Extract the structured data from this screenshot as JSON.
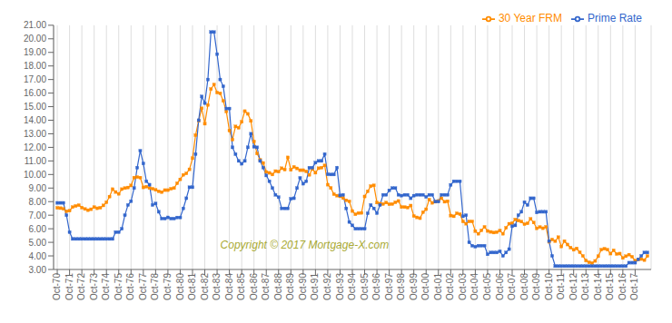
{
  "chart_data": {
    "type": "line",
    "annotation": "Copyright © 2017 Mortgage-X.com",
    "x": [
      1970,
      1970.25,
      1970.5,
      1970.75,
      1971,
      1971.25,
      1971.5,
      1971.75,
      1972,
      1972.25,
      1972.5,
      1972.75,
      1973,
      1973.25,
      1973.5,
      1973.75,
      1974,
      1974.25,
      1974.5,
      1974.75,
      1975,
      1975.25,
      1975.5,
      1975.75,
      1976,
      1976.25,
      1976.5,
      1976.75,
      1977,
      1977.25,
      1977.5,
      1977.75,
      1978,
      1978.25,
      1978.5,
      1978.75,
      1979,
      1979.25,
      1979.5,
      1979.75,
      1980,
      1980.25,
      1980.5,
      1980.75,
      1981,
      1981.25,
      1981.5,
      1981.75,
      1982,
      1982.25,
      1982.5,
      1982.75,
      1983,
      1983.25,
      1983.5,
      1983.75,
      1984,
      1984.25,
      1984.5,
      1984.75,
      1985,
      1985.25,
      1985.5,
      1985.75,
      1986,
      1986.25,
      1986.5,
      1986.75,
      1987,
      1987.25,
      1987.5,
      1987.75,
      1988,
      1988.25,
      1988.5,
      1988.75,
      1989,
      1989.25,
      1989.5,
      1989.75,
      1990,
      1990.25,
      1990.5,
      1990.75,
      1991,
      1991.25,
      1991.5,
      1991.75,
      1992,
      1992.25,
      1992.5,
      1992.75,
      1993,
      1993.25,
      1993.5,
      1993.75,
      1994,
      1994.25,
      1994.5,
      1994.75,
      1995,
      1995.25,
      1995.5,
      1995.75,
      1996,
      1996.25,
      1996.5,
      1996.75,
      1997,
      1997.25,
      1997.5,
      1997.75,
      1998,
      1998.25,
      1998.5,
      1998.75,
      1999,
      1999.25,
      1999.5,
      1999.75,
      2000,
      2000.25,
      2000.5,
      2000.75,
      2001,
      2001.25,
      2001.5,
      2001.75,
      2002,
      2002.25,
      2002.5,
      2002.75,
      2003,
      2003.25,
      2003.5,
      2003.75,
      2004,
      2004.25,
      2004.5,
      2004.75,
      2005,
      2005.25,
      2005.5,
      2005.75,
      2006,
      2006.25,
      2006.5,
      2006.75,
      2007,
      2007.25,
      2007.5,
      2007.75,
      2008,
      2008.25,
      2008.5,
      2008.75,
      2009,
      2009.25,
      2009.5,
      2009.75,
      2010,
      2010.25,
      2010.5,
      2010.75,
      2011,
      2011.25,
      2011.5,
      2011.75,
      2012,
      2012.25,
      2012.5,
      2012.75,
      2013,
      2013.25,
      2013.5,
      2013.75,
      2014,
      2014.25,
      2014.5,
      2014.75,
      2015,
      2015.25,
      2015.5,
      2015.75,
      2016,
      2016.25,
      2016.5,
      2016.75,
      2017,
      2017.25,
      2017.5,
      2017.75,
      2018
    ],
    "series": [
      {
        "name": "30 Year FRM",
        "color": "#FF8C00",
        "marker": "square",
        "values": [
          7.54,
          7.52,
          7.47,
          7.29,
          7.33,
          7.6,
          7.68,
          7.74,
          7.56,
          7.46,
          7.37,
          7.44,
          7.6,
          7.51,
          7.55,
          7.72,
          7.95,
          8.37,
          8.92,
          8.71,
          8.57,
          8.92,
          9.0,
          9.04,
          9.19,
          9.77,
          9.81,
          9.77,
          9.05,
          9.1,
          9.0,
          8.95,
          8.87,
          8.76,
          8.7,
          8.85,
          8.85,
          8.95,
          9.0,
          9.35,
          9.64,
          9.97,
          10.08,
          10.38,
          11.2,
          12.9,
          13.95,
          14.88,
          13.74,
          15.12,
          16.3,
          16.63,
          16.04,
          15.98,
          15.43,
          14.64,
          13.24,
          12.57,
          13.54,
          13.44,
          13.88,
          14.67,
          14.47,
          13.95,
          12.43,
          11.55,
          11.08,
          10.85,
          10.19,
          10.12,
          10.0,
          10.25,
          10.21,
          10.46,
          10.36,
          11.26,
          10.34,
          10.56,
          10.45,
          10.32,
          10.32,
          10.23,
          9.97,
          10.4,
          10.13,
          10.46,
          10.5,
          10.67,
          9.25,
          9.01,
          8.55,
          8.44,
          8.39,
          8.26,
          8.1,
          8.02,
          7.31,
          7.07,
          7.16,
          7.17,
          8.38,
          8.76,
          9.14,
          9.2,
          7.93,
          7.85,
          7.82,
          7.93,
          7.81,
          7.82,
          7.95,
          8.05,
          7.6,
          7.6,
          7.56,
          7.71,
          6.94,
          6.84,
          6.78,
          7.22,
          7.44,
          8.15,
          7.91,
          7.99,
          8.05,
          8.25,
          7.99,
          8.03,
          6.97,
          6.92,
          7.14,
          7.08,
          6.54,
          6.37,
          6.54,
          6.54,
          5.83,
          5.63,
          5.88,
          6.14,
          5.84,
          5.77,
          5.72,
          5.75,
          5.87,
          5.63,
          6.07,
          6.37,
          6.41,
          6.68,
          6.6,
          6.53,
          6.34,
          6.4,
          6.73,
          6.46,
          6.03,
          6.13,
          6.04,
          6.14,
          5.04,
          5.21,
          5.09,
          5.38,
          4.69,
          5.09,
          4.84,
          4.61,
          4.45,
          4.55,
          4.27,
          4.0,
          3.66,
          3.53,
          3.47,
          3.63,
          3.98,
          4.46,
          4.53,
          4.46,
          4.17,
          4.41,
          4.14,
          4.17,
          3.85,
          3.98,
          4.09,
          3.94,
          3.65,
          3.73,
          3.77,
          3.69,
          3.99
        ]
      },
      {
        "name": "Prime Rate",
        "color": "#3366CC",
        "marker": "square",
        "values": [
          7.91,
          7.91,
          7.91,
          7.0,
          5.75,
          5.25,
          5.25,
          5.25,
          5.25,
          5.25,
          5.25,
          5.25,
          5.25,
          5.25,
          5.25,
          5.25,
          5.25,
          5.25,
          5.25,
          5.75,
          5.75,
          6.0,
          7.0,
          7.75,
          8.03,
          9.0,
          10.5,
          11.75,
          10.81,
          9.5,
          9.25,
          7.75,
          7.86,
          7.25,
          6.75,
          6.75,
          6.84,
          6.75,
          6.75,
          6.83,
          6.83,
          7.5,
          8.25,
          9.06,
          9.06,
          11.5,
          14.0,
          15.75,
          15.26,
          17.0,
          20.5,
          20.5,
          18.87,
          17.0,
          16.5,
          14.86,
          14.86,
          12.0,
          11.5,
          11.0,
          10.79,
          11.0,
          12.0,
          13.0,
          12.04,
          12.0,
          11.0,
          10.5,
          9.93,
          9.5,
          9.0,
          8.5,
          8.33,
          7.5,
          7.5,
          7.5,
          8.21,
          8.25,
          9.0,
          9.75,
          9.32,
          9.5,
          10.5,
          10.5,
          10.87,
          11.0,
          11.0,
          11.5,
          10.01,
          10.0,
          10.0,
          10.5,
          8.46,
          8.5,
          7.5,
          6.5,
          6.25,
          6.0,
          6.0,
          6.0,
          6.0,
          7.14,
          7.75,
          7.5,
          7.15,
          7.75,
          8.5,
          8.5,
          8.83,
          9.0,
          9.0,
          8.5,
          8.44,
          8.5,
          8.5,
          8.25,
          8.44,
          8.5,
          8.5,
          8.5,
          8.35,
          8.5,
          8.5,
          8.0,
          8.0,
          8.5,
          8.5,
          8.5,
          9.23,
          9.5,
          9.5,
          9.5,
          6.92,
          7.0,
          5.0,
          4.75,
          4.68,
          4.75,
          4.75,
          4.75,
          4.12,
          4.25,
          4.25,
          4.25,
          4.34,
          4.0,
          4.25,
          4.5,
          6.19,
          6.25,
          7.0,
          7.25,
          7.96,
          7.75,
          8.25,
          8.25,
          7.2,
          7.25,
          7.25,
          7.25,
          5.09,
          4.0,
          3.25,
          3.25,
          3.25,
          3.25,
          3.25,
          3.25,
          3.25,
          3.25,
          3.25,
          3.25,
          3.25,
          3.25,
          3.25,
          3.25,
          3.25,
          3.25,
          3.25,
          3.25,
          3.25,
          3.25,
          3.25,
          3.25,
          3.25,
          3.25,
          3.5,
          3.5,
          3.5,
          3.75,
          4.0,
          4.25,
          4.25
        ]
      }
    ],
    "xlim": [
      1969.7,
      2018.3
    ],
    "xticks": [
      {
        "value": 1970,
        "label": "Oct-70"
      },
      {
        "value": 1971,
        "label": "Oct-71"
      },
      {
        "value": 1972,
        "label": "Oct-72"
      },
      {
        "value": 1973,
        "label": "Oct-73"
      },
      {
        "value": 1974,
        "label": "Oct-74"
      },
      {
        "value": 1975,
        "label": "Oct-75"
      },
      {
        "value": 1976,
        "label": "Oct-76"
      },
      {
        "value": 1977,
        "label": "Oct-77"
      },
      {
        "value": 1978,
        "label": "Oct-78"
      },
      {
        "value": 1979,
        "label": "Oct-79"
      },
      {
        "value": 1980,
        "label": "Oct-80"
      },
      {
        "value": 1981,
        "label": "Oct-81"
      },
      {
        "value": 1982,
        "label": "Oct-82"
      },
      {
        "value": 1983,
        "label": "Oct-83"
      },
      {
        "value": 1984,
        "label": "Oct-84"
      },
      {
        "value": 1985,
        "label": "Oct-85"
      },
      {
        "value": 1986,
        "label": "Oct-86"
      },
      {
        "value": 1987,
        "label": "Oct-87"
      },
      {
        "value": 1988,
        "label": "Oct-88"
      },
      {
        "value": 1989,
        "label": "Oct-89"
      },
      {
        "value": 1990,
        "label": "Oct-90"
      },
      {
        "value": 1991,
        "label": "Oct-91"
      },
      {
        "value": 1992,
        "label": "Oct-92"
      },
      {
        "value": 1993,
        "label": "Oct-93"
      },
      {
        "value": 1994,
        "label": "Oct-94"
      },
      {
        "value": 1995,
        "label": "Oct-95"
      },
      {
        "value": 1996,
        "label": "Oct-96"
      },
      {
        "value": 1997,
        "label": "Oct-97"
      },
      {
        "value": 1998,
        "label": "Oct-98"
      },
      {
        "value": 1999,
        "label": "Oct-99"
      },
      {
        "value": 2000,
        "label": "Oct-00"
      },
      {
        "value": 2001,
        "label": "Oct-01"
      },
      {
        "value": 2002,
        "label": "Oct-02"
      },
      {
        "value": 2003,
        "label": "Oct-03"
      },
      {
        "value": 2004,
        "label": "Oct-04"
      },
      {
        "value": 2005,
        "label": "Oct-05"
      },
      {
        "value": 2006,
        "label": "Oct-06"
      },
      {
        "value": 2007,
        "label": "Oct-07"
      },
      {
        "value": 2008,
        "label": "Oct-08"
      },
      {
        "value": 2009,
        "label": "Oct-09"
      },
      {
        "value": 2010,
        "label": "Oct-10"
      },
      {
        "value": 2011,
        "label": "Oct-11"
      },
      {
        "value": 2012,
        "label": "Oct-12"
      },
      {
        "value": 2013,
        "label": "Oct-13"
      },
      {
        "value": 2014,
        "label": "Oct-14"
      },
      {
        "value": 2015,
        "label": "Oct-15"
      },
      {
        "value": 2016,
        "label": "Oct-16"
      },
      {
        "value": 2017,
        "label": "Oct-17"
      }
    ],
    "ylim": [
      3.0,
      21.0
    ],
    "yticks": [
      {
        "value": 3.0,
        "label": "3.00"
      },
      {
        "value": 4.0,
        "label": "4.00"
      },
      {
        "value": 5.0,
        "label": "5.00"
      },
      {
        "value": 6.0,
        "label": "6.00"
      },
      {
        "value": 7.0,
        "label": "7.00"
      },
      {
        "value": 8.0,
        "label": "8.00"
      },
      {
        "value": 9.0,
        "label": "9.00"
      },
      {
        "value": 10.0,
        "label": "10.00"
      },
      {
        "value": 11.0,
        "label": "11.00"
      },
      {
        "value": 12.0,
        "label": "12.00"
      },
      {
        "value": 13.0,
        "label": "13.00"
      },
      {
        "value": 14.0,
        "label": "14.00"
      },
      {
        "value": 15.0,
        "label": "15.00"
      },
      {
        "value": 16.0,
        "label": "16.00"
      },
      {
        "value": 17.0,
        "label": "17.00"
      },
      {
        "value": 18.0,
        "label": "18.00"
      },
      {
        "value": 19.0,
        "label": "19.00"
      },
      {
        "value": 20.0,
        "label": "20.00"
      },
      {
        "value": 21.0,
        "label": "21.00"
      }
    ],
    "grid": "x",
    "legend": "upper right"
  }
}
